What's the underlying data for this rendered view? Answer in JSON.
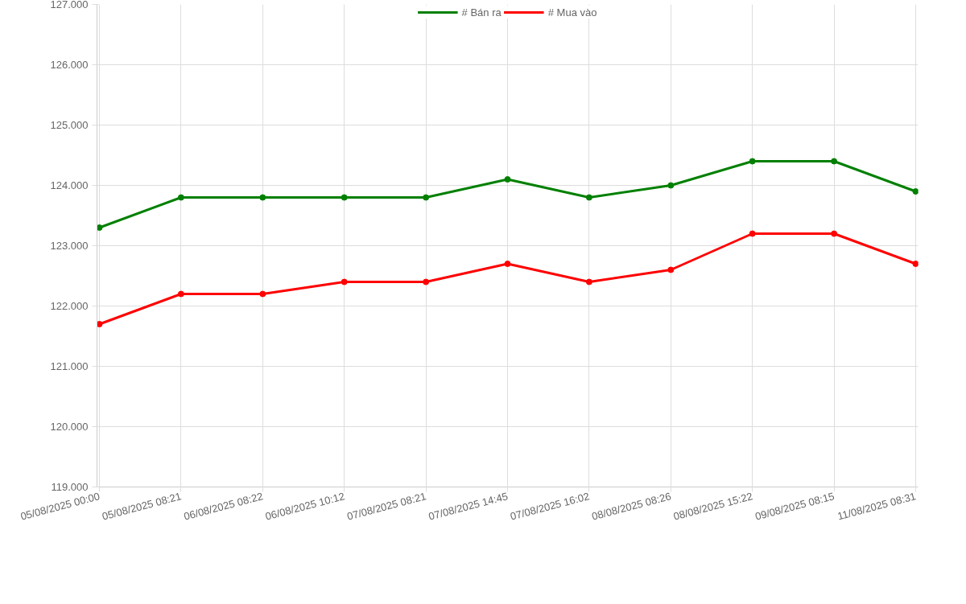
{
  "chart_data": {
    "type": "line",
    "categories": [
      "05/08/2025 00:00",
      "05/08/2025 08:21",
      "06/08/2025 08:22",
      "06/08/2025 10:12",
      "07/08/2025 08:21",
      "07/08/2025 14:45",
      "07/08/2025 16:02",
      "08/08/2025 08:26",
      "08/08/2025 15:22",
      "09/08/2025 08:15",
      "11/08/2025 08:31"
    ],
    "series": [
      {
        "name": "# Bán ra",
        "color": "#008000",
        "values": [
          123300,
          123800,
          123800,
          123800,
          123800,
          124100,
          123800,
          124000,
          124400,
          124400,
          123900
        ]
      },
      {
        "name": "# Mua vào",
        "color": "#ff0000",
        "values": [
          121700,
          122200,
          122200,
          122400,
          122400,
          122700,
          122400,
          122600,
          123200,
          123200,
          122700
        ]
      }
    ],
    "ylim": [
      119000,
      127000
    ],
    "yticks": [
      {
        "value": 119000,
        "label": "119.000"
      },
      {
        "value": 120000,
        "label": "120.000"
      },
      {
        "value": 121000,
        "label": "121.000"
      },
      {
        "value": 122000,
        "label": "122.000"
      },
      {
        "value": 123000,
        "label": "123.000"
      },
      {
        "value": 124000,
        "label": "124.000"
      },
      {
        "value": 125000,
        "label": "125.000"
      },
      {
        "value": 126000,
        "label": "126.000"
      },
      {
        "value": 127000,
        "label": "127.000"
      }
    ],
    "grid": true,
    "legend": "top",
    "marker": "circle",
    "line_style": "solid"
  }
}
